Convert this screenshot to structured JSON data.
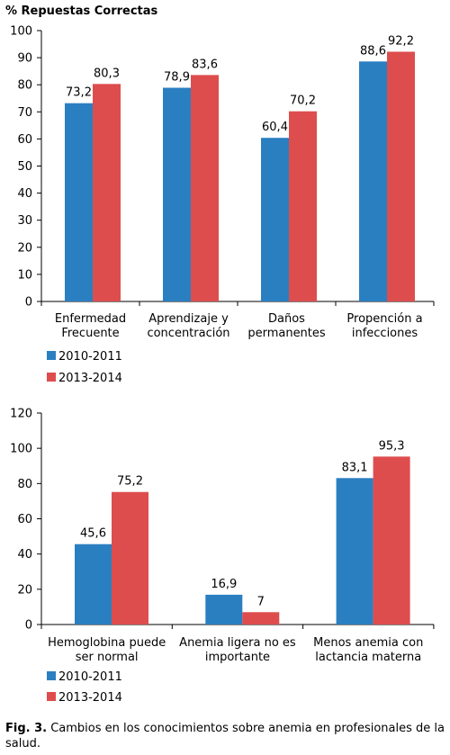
{
  "colors": {
    "series_2010": "#2a7fc1",
    "series_2013": "#de4d4d",
    "axis": "#000000"
  },
  "chart_data": [
    {
      "type": "bar",
      "title": "",
      "ylabel": "% Repuestas Correctas",
      "ylim": [
        0,
        100
      ],
      "yticks": [
        "0",
        "10",
        "20",
        "30",
        "40",
        "50",
        "60",
        "70",
        "80",
        "90",
        "100"
      ],
      "categories": [
        [
          "Enfermedad",
          "Frecuente"
        ],
        [
          "Aprendizaje y",
          "concentración"
        ],
        [
          "Daños",
          "permanentes"
        ],
        [
          "Propención a",
          "infecciones"
        ]
      ],
      "series": [
        {
          "name": "2010-2011",
          "values": [
            73.2,
            78.9,
            60.4,
            88.6
          ],
          "labels": [
            "73,2",
            "78,9",
            "60,4",
            "88,6"
          ]
        },
        {
          "name": "2013-2014",
          "values": [
            80.3,
            83.6,
            70.2,
            92.2
          ],
          "labels": [
            "80,3",
            "83,6",
            "70,2",
            "92,2"
          ]
        }
      ],
      "legend": "bottom-left"
    },
    {
      "type": "bar",
      "title": "",
      "ylabel": "",
      "ylim": [
        0,
        120
      ],
      "yticks": [
        "0",
        "20",
        "40",
        "60",
        "80",
        "100",
        "120"
      ],
      "categories": [
        [
          "Hemoglobina puede",
          "ser normal"
        ],
        [
          "Anemia ligera no es",
          "importante"
        ],
        [
          "Menos anemia con",
          "lactancia materna"
        ]
      ],
      "series": [
        {
          "name": "2010-2011",
          "values": [
            45.6,
            16.9,
            83.1
          ],
          "labels": [
            "45,6",
            "16,9",
            "83,1"
          ]
        },
        {
          "name": "2013-2014",
          "values": [
            75.2,
            7,
            95.3
          ],
          "labels": [
            "75,2",
            "7",
            "95,3"
          ]
        }
      ],
      "legend": "bottom-left"
    }
  ],
  "caption": {
    "label": "Fig. 3.",
    "text": " Cambios en los conocimientos sobre anemia en profesionales de la salud."
  }
}
